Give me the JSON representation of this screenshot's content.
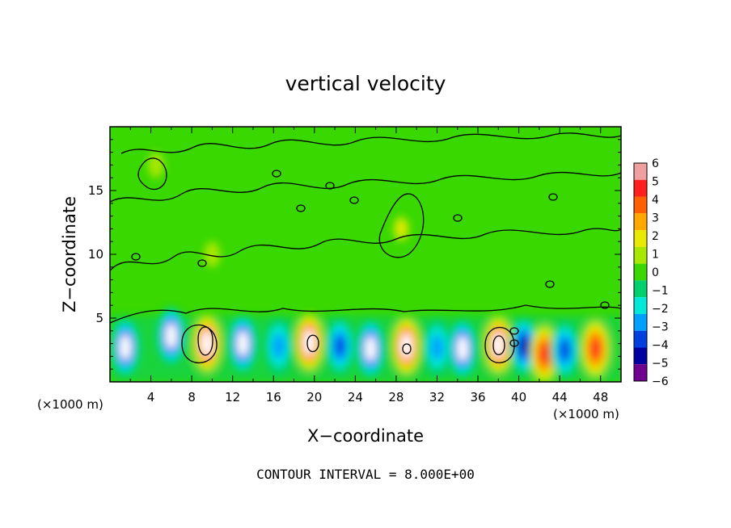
{
  "chart_data": {
    "type": "heatmap",
    "title": "vertical velocity",
    "xlabel": "X−coordinate",
    "ylabel": "Z−coordinate",
    "x_unit": "(×1000 m)",
    "x_unit_right": "(×1000 m)",
    "xlim": [
      0,
      50
    ],
    "ylim": [
      0,
      20
    ],
    "x_ticks": [
      "4",
      "8",
      "12",
      "16",
      "20",
      "24",
      "28",
      "32",
      "36",
      "40",
      "44",
      "48"
    ],
    "y_ticks": [
      "5",
      "10",
      "15"
    ],
    "footer": "CONTOUR INTERVAL = 8.000E+00",
    "colorbar": {
      "ticks": [
        "6",
        "5",
        "4",
        "3",
        "2",
        "1",
        "0",
        "−1",
        "−2",
        "−3",
        "−4",
        "−5",
        "−6"
      ],
      "levels": [
        6,
        5,
        4,
        3,
        2,
        1,
        0,
        -1,
        -2,
        -3,
        -4,
        -5,
        -6
      ],
      "colors": [
        "#f0a0a0",
        "#ff2020",
        "#ff6000",
        "#ffa800",
        "#e8e800",
        "#a8e800",
        "#38d800",
        "#00d070",
        "#00e8d8",
        "#00a0ff",
        "#0040e0",
        "#0000a0",
        "#700090"
      ]
    },
    "cells": [
      {
        "x": 1.5,
        "z": 2.7,
        "w": -6
      },
      {
        "x": 6.0,
        "z": 3.6,
        "w": -6
      },
      {
        "x": 9.5,
        "z": 3.0,
        "w": 6
      },
      {
        "x": 13.0,
        "z": 3.0,
        "w": -6
      },
      {
        "x": 16.5,
        "z": 2.8,
        "w": -3
      },
      {
        "x": 19.5,
        "z": 3.1,
        "w": 6
      },
      {
        "x": 22.5,
        "z": 2.8,
        "w": -4
      },
      {
        "x": 25.5,
        "z": 2.6,
        "w": -6
      },
      {
        "x": 29.0,
        "z": 2.8,
        "w": 6
      },
      {
        "x": 32.0,
        "z": 2.7,
        "w": -3
      },
      {
        "x": 34.5,
        "z": 2.6,
        "w": -6
      },
      {
        "x": 38.0,
        "z": 2.9,
        "w": 6
      },
      {
        "x": 40.5,
        "z": 2.8,
        "w": -5
      },
      {
        "x": 42.5,
        "z": 2.2,
        "w": 5
      },
      {
        "x": 44.5,
        "z": 2.5,
        "w": -4
      },
      {
        "x": 47.5,
        "z": 2.6,
        "w": 5
      },
      {
        "x": 4.5,
        "z": 17.0,
        "w": 1
      },
      {
        "x": 28.5,
        "z": 12.0,
        "w": 2
      },
      {
        "x": 10.0,
        "z": 10.0,
        "w": 1
      }
    ]
  }
}
